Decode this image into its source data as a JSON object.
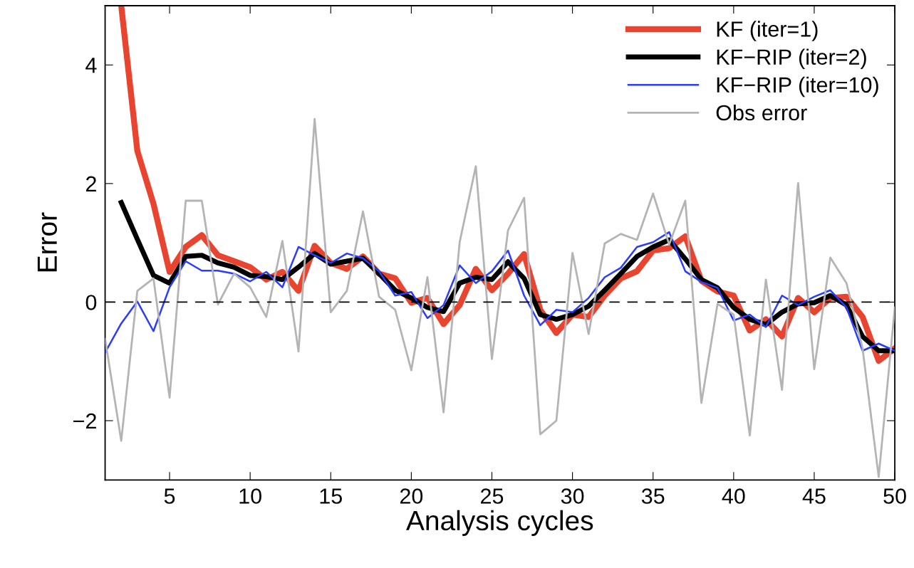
{
  "chart_data": {
    "type": "line",
    "xlabel": "Analysis cycles",
    "ylabel": "Error",
    "x": [
      1,
      2,
      3,
      4,
      5,
      6,
      7,
      8,
      9,
      10,
      11,
      12,
      13,
      14,
      15,
      16,
      17,
      18,
      19,
      20,
      21,
      22,
      23,
      24,
      25,
      26,
      27,
      28,
      29,
      30,
      31,
      32,
      33,
      34,
      35,
      36,
      37,
      38,
      39,
      40,
      41,
      42,
      43,
      44,
      45,
      46,
      47,
      48,
      49,
      50
    ],
    "xlim": [
      1,
      50
    ],
    "xticks": [
      5,
      10,
      15,
      20,
      25,
      30,
      35,
      40,
      45,
      50
    ],
    "ylim": [
      -3,
      5
    ],
    "yticks": [
      {
        "value": -2,
        "label": "−2"
      },
      0,
      2,
      4
    ],
    "grid": false,
    "legend": "top right",
    "line_style": "solid",
    "marker": "none",
    "ref_lines": [
      {
        "axis": "y",
        "value": 0,
        "color": "#000000",
        "line_style": "dashed"
      }
    ],
    "series": [
      {
        "name": "KF (iter=1)",
        "color": "#e8442f",
        "values": [
          null,
          5.0,
          2.55,
          1.66,
          0.51,
          0.93,
          1.13,
          0.79,
          0.69,
          0.59,
          0.38,
          0.51,
          0.19,
          0.95,
          0.66,
          0.56,
          0.77,
          0.48,
          0.4,
          -0.01,
          0.07,
          -0.37,
          -0.05,
          0.56,
          0.2,
          0.48,
          0.81,
          -0.13,
          -0.52,
          -0.21,
          -0.25,
          0.11,
          0.4,
          0.52,
          0.87,
          0.91,
          1.11,
          0.36,
          0.18,
          0.11,
          -0.48,
          -0.29,
          -0.58,
          0.07,
          -0.17,
          0.07,
          0.09,
          -0.25,
          -0.99,
          -0.78
        ]
      },
      {
        "name": "KF−RIP (iter=2)",
        "color": "#000000",
        "values": [
          null,
          1.68,
          1.06,
          0.45,
          0.32,
          0.77,
          0.79,
          0.66,
          0.59,
          0.45,
          0.43,
          0.38,
          0.59,
          0.82,
          0.64,
          0.69,
          0.74,
          0.48,
          0.2,
          0.07,
          -0.09,
          -0.16,
          0.32,
          0.42,
          0.38,
          0.68,
          0.4,
          -0.21,
          -0.29,
          -0.21,
          -0.07,
          0.2,
          0.48,
          0.77,
          0.93,
          1.05,
          0.73,
          0.38,
          0.24,
          -0.09,
          -0.29,
          -0.38,
          -0.17,
          -0.03,
          -0.01,
          0.11,
          -0.05,
          -0.58,
          -0.82,
          -0.82
        ]
      },
      {
        "name": "KF−RIP (iter=10)",
        "color": "#2a3cff",
        "values": [
          -0.85,
          -0.36,
          0.01,
          -0.49,
          0.25,
          0.69,
          0.53,
          0.53,
          0.48,
          0.35,
          0.51,
          0.25,
          0.93,
          0.79,
          0.66,
          0.82,
          0.74,
          0.52,
          0.11,
          0.17,
          -0.27,
          -0.05,
          0.62,
          0.32,
          0.52,
          0.87,
          0.11,
          -0.39,
          -0.13,
          -0.17,
          0.07,
          0.42,
          0.58,
          0.93,
          1.01,
          1.18,
          0.52,
          0.34,
          0.24,
          -0.31,
          -0.21,
          -0.42,
          0.11,
          -0.05,
          0.09,
          0.2,
          -0.09,
          -0.82,
          -0.7,
          -0.82
        ]
      },
      {
        "name": "Obs error",
        "color": "#b4b4b4",
        "values": [
          -0.62,
          -2.34,
          0.19,
          0.4,
          -1.61,
          1.71,
          1.71,
          -0.04,
          0.48,
          0.25,
          -0.25,
          1.03,
          -0.83,
          3.09,
          -0.17,
          0.19,
          1.53,
          0.09,
          -0.13,
          -1.15,
          0.42,
          -1.86,
          1.01,
          2.29,
          -0.96,
          1.21,
          1.76,
          -2.23,
          -2.0,
          0.83,
          -0.54,
          0.99,
          1.15,
          1.05,
          1.83,
          0.97,
          1.71,
          -1.7,
          -0.03,
          -0.21,
          -2.25,
          0.38,
          -1.48,
          2.01,
          -1.13,
          0.75,
          0.32,
          -0.78,
          -2.95,
          -0.09
        ]
      }
    ]
  }
}
